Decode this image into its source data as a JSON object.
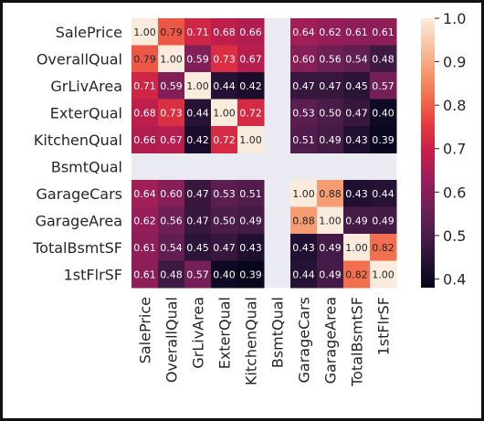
{
  "chart_data": {
    "type": "heatmap",
    "title": "",
    "row_labels": [
      "SalePrice",
      "OverallQual",
      "GrLivArea",
      "ExterQual",
      "KitchenQual",
      "BsmtQual",
      "GarageCars",
      "GarageArea",
      "TotalBsmtSF",
      "1stFlrSF"
    ],
    "col_labels": [
      "SalePrice",
      "OverallQual",
      "GrLivArea",
      "ExterQual",
      "KitchenQual",
      "BsmtQual",
      "GarageCars",
      "GarageArea",
      "TotalBsmtSF",
      "1stFlrSF"
    ],
    "values": [
      [
        1.0,
        0.79,
        0.71,
        0.68,
        0.66,
        null,
        0.64,
        0.62,
        0.61,
        0.61
      ],
      [
        0.79,
        1.0,
        0.59,
        0.73,
        0.67,
        null,
        0.6,
        0.56,
        0.54,
        0.48
      ],
      [
        0.71,
        0.59,
        1.0,
        0.44,
        0.42,
        null,
        0.47,
        0.47,
        0.45,
        0.57
      ],
      [
        0.68,
        0.73,
        0.44,
        1.0,
        0.72,
        null,
        0.53,
        0.5,
        0.47,
        0.4
      ],
      [
        0.66,
        0.67,
        0.42,
        0.72,
        1.0,
        null,
        0.51,
        0.49,
        0.43,
        0.39
      ],
      [
        null,
        null,
        null,
        null,
        null,
        null,
        null,
        null,
        null,
        null
      ],
      [
        0.64,
        0.6,
        0.47,
        0.53,
        0.51,
        null,
        1.0,
        0.88,
        0.43,
        0.44
      ],
      [
        0.62,
        0.56,
        0.47,
        0.5,
        0.49,
        null,
        0.88,
        1.0,
        0.49,
        0.49
      ],
      [
        0.61,
        0.54,
        0.45,
        0.47,
        0.43,
        null,
        0.43,
        0.49,
        1.0,
        0.82
      ],
      [
        0.61,
        0.48,
        0.57,
        0.4,
        0.39,
        null,
        0.44,
        0.49,
        0.82,
        1.0
      ]
    ],
    "value_format": "2 decimals",
    "missing_color": "#eaeaf2",
    "colormap": "rocket",
    "colorbar": {
      "vmin": 0.38,
      "vmax": 1.0,
      "ticks": [
        0.4,
        0.5,
        0.6,
        0.7,
        0.8,
        0.9,
        1.0
      ],
      "tick_labels": [
        "0.4",
        "0.5",
        "0.6",
        "0.7",
        "0.8",
        "0.9",
        "1.0"
      ],
      "position": "right"
    }
  }
}
